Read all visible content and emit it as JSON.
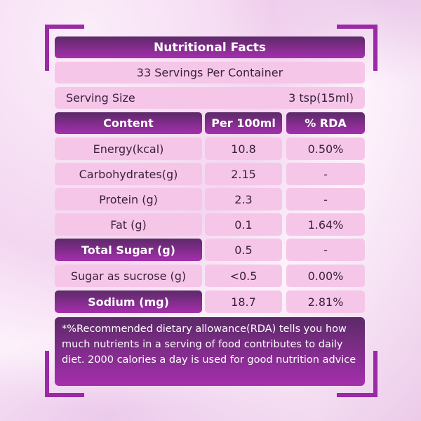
{
  "title": "Nutritional Facts",
  "servings": "33 Servings Per Container",
  "serving_size": {
    "label": "Serving Size",
    "value": "3 tsp(15ml)"
  },
  "headers": [
    "Content",
    "Per 100ml",
    "% RDA"
  ],
  "rows": [
    {
      "name": "Energy(kcal)",
      "per100": "10.8",
      "rda": "0.50%",
      "highlight": false
    },
    {
      "name": "Carbohydrates(g)",
      "per100": "2.15",
      "rda": "-",
      "highlight": false
    },
    {
      "name": "Protein (g)",
      "per100": "2.3",
      "rda": "-",
      "highlight": false
    },
    {
      "name": "Fat (g)",
      "per100": "0.1",
      "rda": "1.64%",
      "highlight": false
    },
    {
      "name": "Total Sugar (g)",
      "per100": "0.5",
      "rda": "-",
      "highlight": true
    },
    {
      "name": "Sugar as sucrose (g)",
      "per100": "<0.5",
      "rda": "0.00%",
      "highlight": false
    },
    {
      "name": "Sodium (mg)",
      "per100": "18.7",
      "rda": "2.81%",
      "highlight": true
    }
  ],
  "note": "*%Recommended dietary allowance(RDA) tells you how much nutrients in a serving of food contributes to daily diet. 2000 calories a day is used for good nutrition advice",
  "colors": {
    "dark_purple": "#5c2a68",
    "purple": "#a52fad",
    "pink": "#f5c6e8"
  }
}
